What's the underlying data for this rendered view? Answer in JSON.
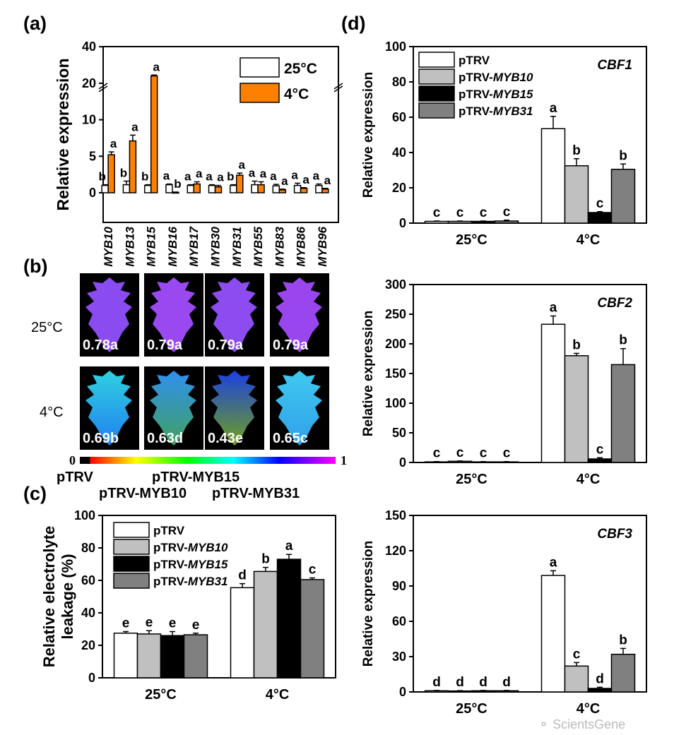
{
  "panels": {
    "a": "(a)",
    "b": "(b)",
    "c": "(c)",
    "d": "(d)"
  },
  "watermark": "ScientsGene",
  "chart_data": [
    {
      "id": "a",
      "type": "bar",
      "ylabel": "Relative expression",
      "yticks": [
        0,
        5,
        10,
        20,
        40
      ],
      "axis_break": [
        10,
        20
      ],
      "categories": [
        "MYB10",
        "MYB13",
        "MYB15",
        "MYB16",
        "MYB17",
        "MYB30",
        "MYB31",
        "MYB55",
        "MYB83",
        "MYB86",
        "MYB96"
      ],
      "series": [
        {
          "name": "25°C",
          "color": "#ffffff",
          "values": [
            1.0,
            1.1,
            1.0,
            1.1,
            1.0,
            1.0,
            1.0,
            1.1,
            0.95,
            1.0,
            1.0
          ],
          "errors": [
            0.1,
            0.5,
            0.1,
            0.1,
            0.1,
            0.1,
            0.1,
            0.5,
            0.2,
            0.3,
            0.2
          ],
          "letters": [
            "b",
            "b",
            "b",
            "a",
            "a",
            "a",
            "b",
            "a",
            "a",
            "a",
            "a"
          ]
        },
        {
          "name": "4°C",
          "color": "#ff8000",
          "values": [
            5.2,
            7.1,
            24,
            0.05,
            1.2,
            0.8,
            2.4,
            1.1,
            0.4,
            0.6,
            0.5
          ],
          "errors": [
            0.4,
            0.8,
            0.5,
            0.05,
            0.3,
            0.2,
            0.3,
            0.4,
            0.1,
            0.1,
            0.1
          ],
          "letters": [
            "a",
            "a",
            "a",
            "b",
            "a",
            "a",
            "a",
            "a",
            "a",
            "a",
            "a"
          ]
        }
      ],
      "legend": "top-right"
    },
    {
      "id": "c",
      "type": "bar",
      "ylabel": [
        "Relative electrolyte",
        "leakage (%)"
      ],
      "ylim": [
        0,
        100
      ],
      "yticks": [
        0,
        20,
        40,
        60,
        80,
        100
      ],
      "categories": [
        "25°C",
        "4°C"
      ],
      "series": [
        {
          "name": "pTRV",
          "suffix": "",
          "color": "#ffffff",
          "values": [
            27.5,
            55.5
          ],
          "errors": [
            1,
            2.5
          ],
          "letters": [
            "e",
            "d"
          ]
        },
        {
          "name": "pTRV-",
          "suffix": "MYB10",
          "color": "#c0c0c0",
          "values": [
            27,
            65.5
          ],
          "errors": [
            2,
            2.5
          ],
          "letters": [
            "e",
            "b"
          ]
        },
        {
          "name": "pTRV-",
          "suffix": "MYB15",
          "color": "#000000",
          "values": [
            26,
            73
          ],
          "errors": [
            2.5,
            3
          ],
          "letters": [
            "e",
            "a"
          ]
        },
        {
          "name": "pTRV-",
          "suffix": "MYB31",
          "color": "#808080",
          "values": [
            26.5,
            60.5
          ],
          "errors": [
            1,
            1
          ],
          "letters": [
            "e",
            "c"
          ]
        }
      ],
      "legend": "top-left"
    },
    {
      "id": "d1",
      "type": "bar",
      "title": "CBF1",
      "ylabel": "Relative expression",
      "ylim": [
        0,
        100
      ],
      "yticks": [
        0,
        20,
        40,
        60,
        80,
        100
      ],
      "categories": [
        "25°C",
        "4°C"
      ],
      "series": [
        {
          "name": "pTRV",
          "suffix": "",
          "color": "#ffffff",
          "values": [
            1,
            53.5
          ],
          "errors": [
            0.2,
            7
          ],
          "letters": [
            "c",
            "a"
          ]
        },
        {
          "name": "pTRV-",
          "suffix": "MYB10",
          "color": "#c0c0c0",
          "values": [
            1,
            32.5
          ],
          "errors": [
            0.2,
            4
          ],
          "letters": [
            "c",
            "b"
          ]
        },
        {
          "name": "pTRV-",
          "suffix": "MYB15",
          "color": "#000000",
          "values": [
            1,
            6
          ],
          "errors": [
            0.2,
            0.5
          ],
          "letters": [
            "c",
            "c"
          ]
        },
        {
          "name": "pTRV-",
          "suffix": "MYB31",
          "color": "#808080",
          "values": [
            1.2,
            30.5
          ],
          "errors": [
            0.5,
            3
          ],
          "letters": [
            "c",
            "b"
          ]
        }
      ],
      "legend": "top-left"
    },
    {
      "id": "d2",
      "type": "bar",
      "title": "CBF2",
      "ylabel": "Relative expression",
      "ylim": [
        0,
        300
      ],
      "yticks": [
        0,
        50,
        100,
        150,
        200,
        250,
        300
      ],
      "categories": [
        "25°C",
        "4°C"
      ],
      "series": [
        {
          "name": "pTRV",
          "color": "#ffffff",
          "values": [
            1,
            233
          ],
          "errors": [
            0.5,
            14
          ],
          "letters": [
            "c",
            "a"
          ]
        },
        {
          "name": "pTRV-MYB10",
          "color": "#c0c0c0",
          "values": [
            2,
            180
          ],
          "errors": [
            0.5,
            4
          ],
          "letters": [
            "c",
            "b"
          ]
        },
        {
          "name": "pTRV-MYB15",
          "color": "#000000",
          "values": [
            1,
            6
          ],
          "errors": [
            0.5,
            2
          ],
          "letters": [
            "c",
            "c"
          ]
        },
        {
          "name": "pTRV-MYB31",
          "color": "#808080",
          "values": [
            1,
            165
          ],
          "errors": [
            0.5,
            27
          ],
          "letters": [
            "c",
            "b"
          ]
        }
      ]
    },
    {
      "id": "d3",
      "type": "bar",
      "title": "CBF3",
      "ylabel": "Relative expression",
      "ylim": [
        0,
        150
      ],
      "yticks": [
        0,
        30,
        60,
        90,
        120,
        150
      ],
      "categories": [
        "25°C",
        "4°C"
      ],
      "series": [
        {
          "name": "pTRV",
          "color": "#ffffff",
          "values": [
            1,
            99
          ],
          "errors": [
            0.3,
            4
          ],
          "letters": [
            "d",
            "a"
          ]
        },
        {
          "name": "pTRV-MYB10",
          "color": "#c0c0c0",
          "values": [
            0.8,
            22
          ],
          "errors": [
            0.3,
            3
          ],
          "letters": [
            "d",
            "c"
          ]
        },
        {
          "name": "pTRV-MYB15",
          "color": "#000000",
          "values": [
            1,
            3
          ],
          "errors": [
            0.3,
            1
          ],
          "letters": [
            "d",
            "d"
          ]
        },
        {
          "name": "pTRV-MYB31",
          "color": "#808080",
          "values": [
            1,
            32
          ],
          "errors": [
            0.3,
            5
          ],
          "letters": [
            "d",
            "b"
          ]
        }
      ]
    }
  ],
  "fv_fm": {
    "rows": [
      "25°C",
      "4°C"
    ],
    "genotypes": [
      "pTRV",
      "pTRV-MYB10",
      "pTRV-MYB15",
      "pTRV-MYB31"
    ],
    "values": [
      [
        "0.78a",
        "0.79a",
        "0.79a",
        "0.79a"
      ],
      [
        "0.69b",
        "0.63d",
        "0.43e",
        "0.65c"
      ]
    ],
    "scale_min": "0",
    "scale_max": "1"
  }
}
